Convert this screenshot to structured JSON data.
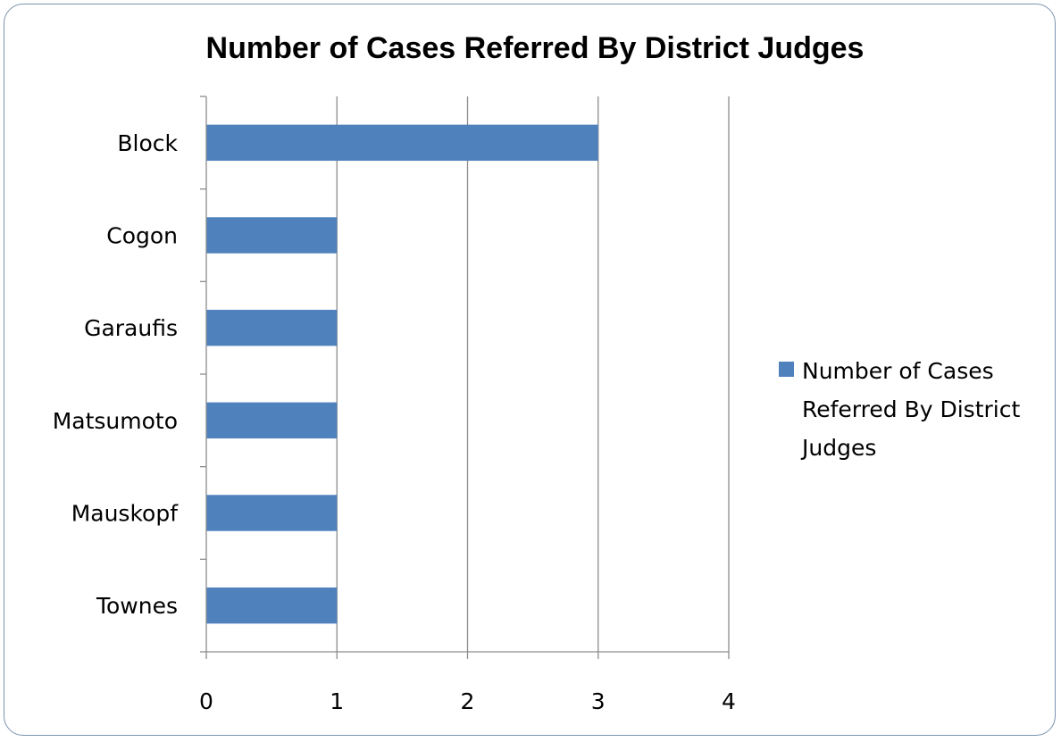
{
  "chart_data": {
    "type": "bar",
    "orientation": "horizontal",
    "title": "Number of Cases Referred By District Judges",
    "categories": [
      "Block",
      "Cogon",
      "Garaufis",
      "Matsumoto",
      "Mauskopf",
      "Townes"
    ],
    "series": [
      {
        "name": "Number of Cases Referred By District Judges",
        "values": [
          3,
          1,
          1,
          1,
          1,
          1
        ],
        "color": "#4f81bd"
      }
    ],
    "xlabel": "",
    "ylabel": "",
    "xlim": [
      0,
      4
    ],
    "xticks": [
      "0",
      "1",
      "2",
      "3",
      "4"
    ],
    "grid": "vertical",
    "legend": {
      "position": "right",
      "lines": [
        "Number of Cases",
        "Referred By District",
        "Judges"
      ]
    }
  }
}
